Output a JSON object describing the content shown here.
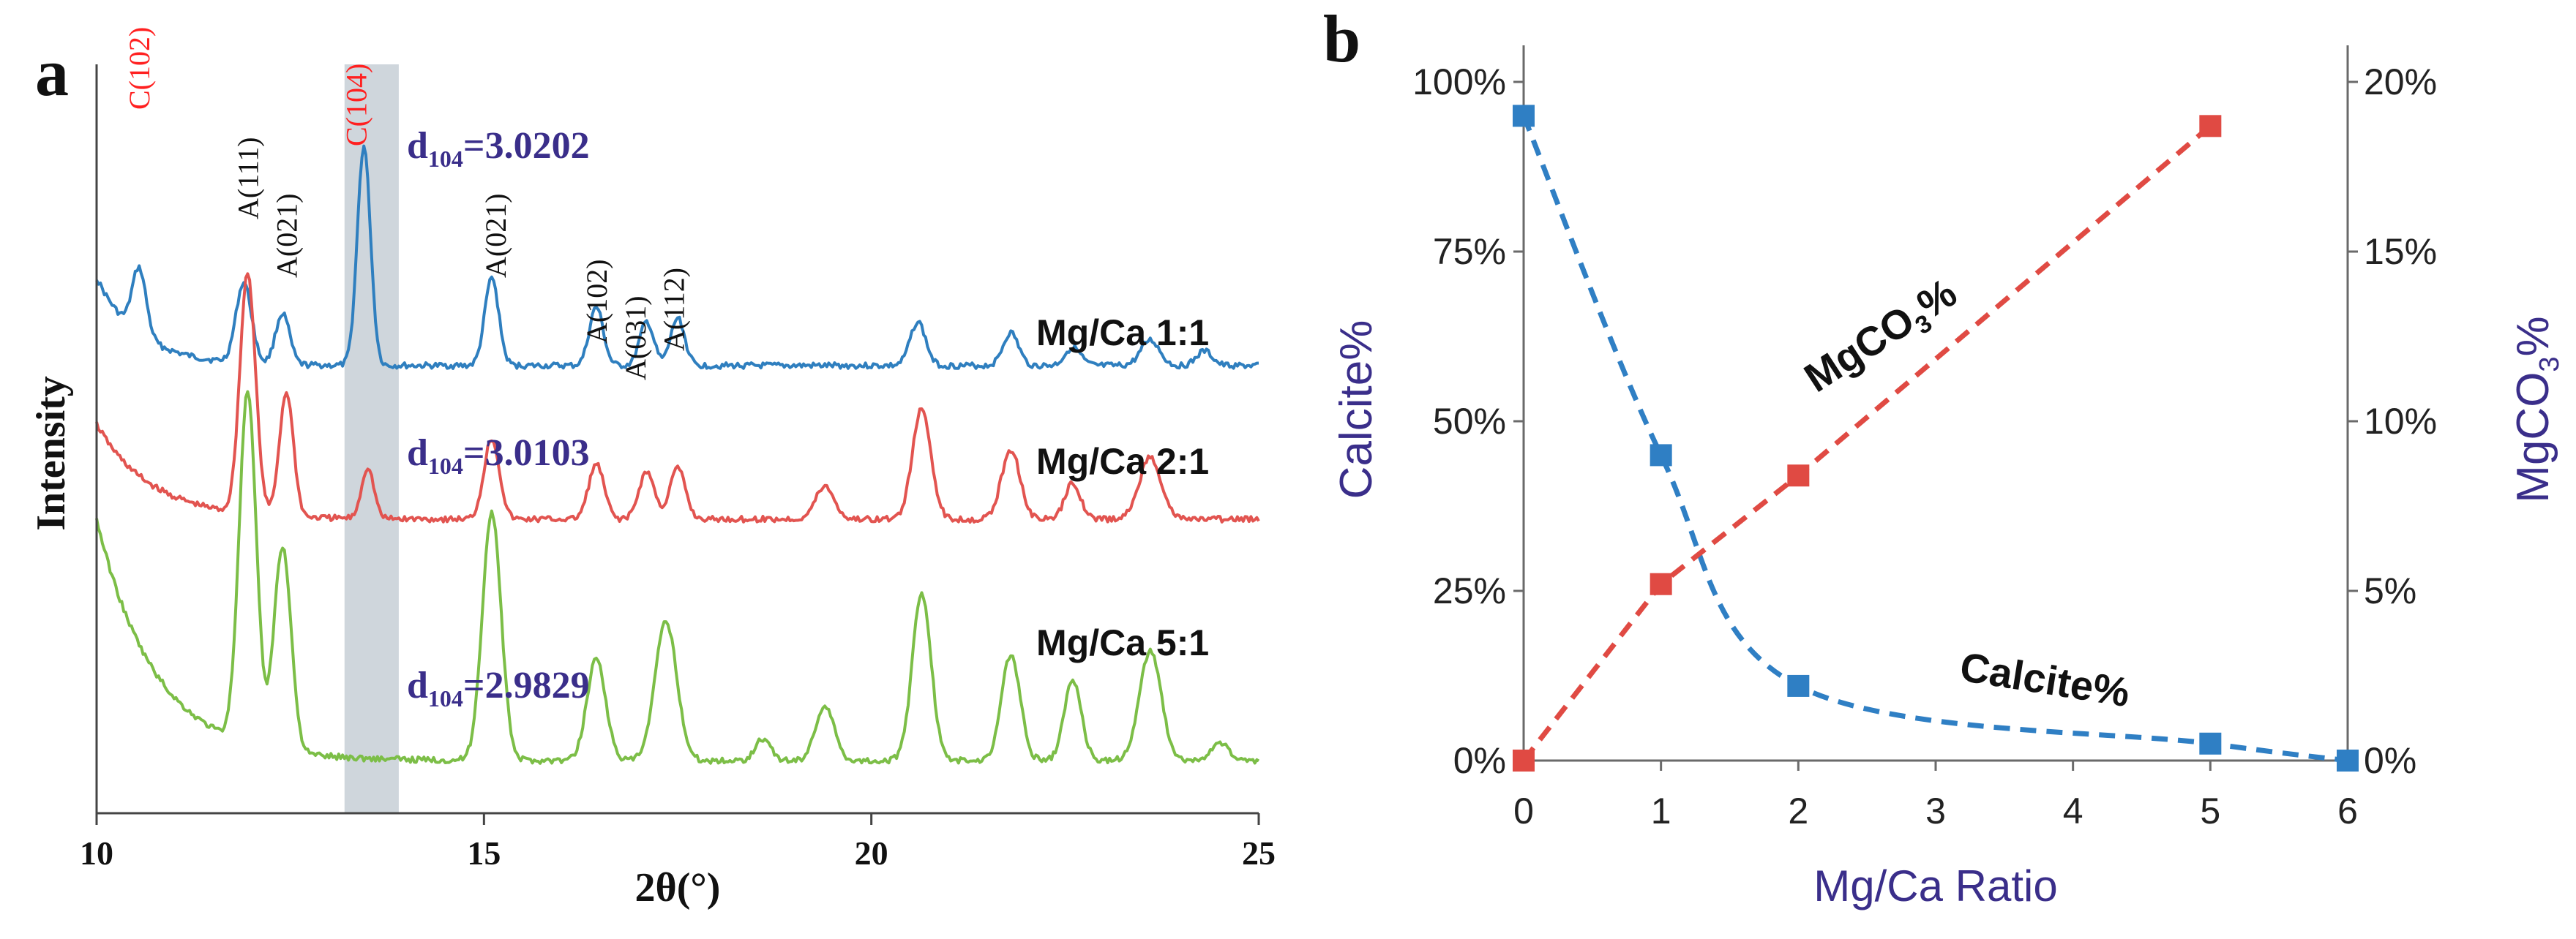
{
  "colors": {
    "calcite": "#2f7fc4",
    "mgco3": "#e04a43",
    "purple": "#3a2e8a",
    "red_label": "#ff2020",
    "xrd_blue": "#2f7fbf",
    "xrd_red": "#e25450",
    "xrd_green": "#7cbe47",
    "band": "#cfd6dc",
    "axis": "#6a6a6a"
  },
  "panel_a": {
    "letter": "a",
    "xlabel": "2θ(°)",
    "ylabel": "Intensity",
    "x_ticks": [
      "10",
      "15",
      "20",
      "25"
    ],
    "xlim": [
      10,
      25
    ],
    "samples": [
      {
        "name": "Mg/Ca 1:1",
        "color_key": "xrd_blue",
        "d_label": "3.0202"
      },
      {
        "name": "Mg/Ca 2:1",
        "color_key": "xrd_red",
        "d_label": "3.0103"
      },
      {
        "name": "Mg/Ca 5:1",
        "color_key": "xrd_green",
        "d_label": "2.9829"
      }
    ],
    "d_prefix": "d",
    "d_sub": "104",
    "d_eq": "=",
    "peak_labels": [
      {
        "text": "C(102)",
        "two_theta": 10.55,
        "color_key": "red_label"
      },
      {
        "text": "A(111)",
        "two_theta": 11.95,
        "color_key": "text"
      },
      {
        "text": "A(021)",
        "two_theta": 12.45,
        "color_key": "text"
      },
      {
        "text": "C(104)",
        "two_theta": 13.35,
        "color_key": "red_label"
      },
      {
        "text": "A(021)",
        "two_theta": 15.15,
        "color_key": "text"
      },
      {
        "text": "A(102)",
        "two_theta": 16.45,
        "color_key": "text"
      },
      {
        "text": "A(031)",
        "two_theta": 16.95,
        "color_key": "text"
      },
      {
        "text": "A(112)",
        "two_theta": 17.45,
        "color_key": "text"
      }
    ],
    "highlight_band": [
      13.2,
      13.9
    ]
  },
  "panel_b": {
    "letter": "b",
    "chart_data": {
      "type": "line",
      "xlabel": "Mg/Ca Ratio",
      "ylabel_left": "Calcite%",
      "ylabel_right_main": "MgCO",
      "ylabel_right_sub": "3",
      "ylabel_right_tail": "%",
      "x_ticks": [
        "0",
        "1",
        "2",
        "3",
        "4",
        "5",
        "6"
      ],
      "xlim": [
        0,
        6
      ],
      "y_left_ticks": [
        "0%",
        "25%",
        "50%",
        "75%",
        "100%"
      ],
      "y_left_lim": [
        0,
        100
      ],
      "y_right_ticks": [
        "0%",
        "5%",
        "10%",
        "15%",
        "20%"
      ],
      "y_right_lim": [
        0,
        20
      ],
      "series": [
        {
          "name": "Calcite%",
          "axis": "left",
          "x": [
            0,
            1,
            2,
            5,
            6
          ],
          "values": [
            95,
            45,
            11,
            2.5,
            0
          ]
        },
        {
          "name": "MgCO3%",
          "axis": "right",
          "x": [
            0,
            1,
            2,
            5
          ],
          "values": [
            0,
            5.2,
            8.4,
            18.7
          ]
        }
      ],
      "annotation_calcite": "Calcite%",
      "annotation_mgco3_main": "MgCO",
      "annotation_mgco3_sub": "3",
      "annotation_mgco3_tail": "%"
    }
  }
}
